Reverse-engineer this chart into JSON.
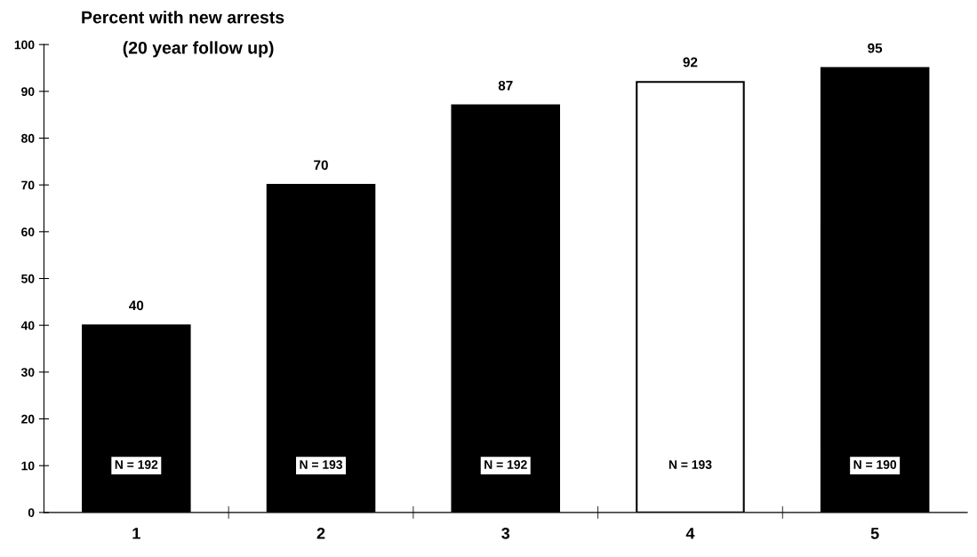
{
  "chart_data": {
    "type": "bar",
    "title": "Percent with new arrests",
    "subtitle": "(20 year follow up)",
    "categories": [
      "1",
      "2",
      "3",
      "4",
      "5"
    ],
    "values": [
      40,
      70,
      87,
      92,
      95
    ],
    "colors": [
      "#000000",
      "#000000",
      "#000000",
      "#ffffff",
      "#000000"
    ],
    "data_labels": true,
    "ylim": [
      0,
      100
    ],
    "yticks": [
      0,
      10,
      20,
      30,
      40,
      50,
      60,
      70,
      80,
      90,
      100
    ],
    "grid": false,
    "legend": false,
    "annotations": [
      "N = 192",
      "N = 193",
      "N = 192",
      "N = 193",
      "N = 190"
    ]
  }
}
